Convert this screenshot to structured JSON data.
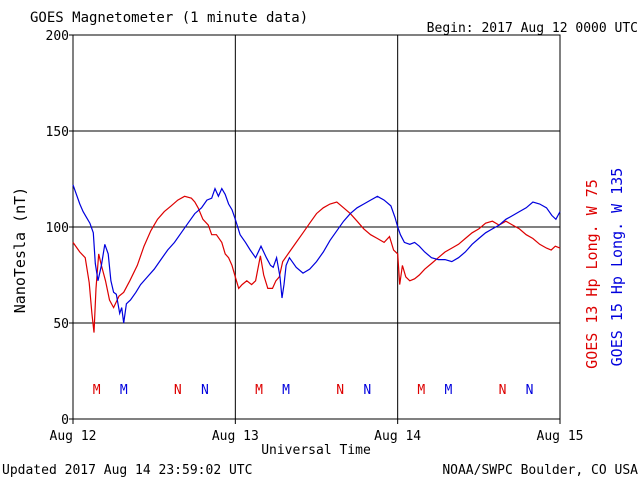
{
  "header": {
    "title": "GOES Magnetometer (1 minute data)",
    "begin": "Begin:  2017 Aug 12 0000 UTC"
  },
  "footer": {
    "updated": "Updated 2017 Aug 14 23:59:02 UTC",
    "credit": "NOAA/SWPC Boulder, CO USA"
  },
  "colors": {
    "goes13": "#dd0000",
    "goes15": "#0000dd",
    "grid": "#000000"
  },
  "chart_data": {
    "type": "line",
    "title": "GOES Magnetometer (1 minute data)",
    "xlabel": "Universal Time",
    "ylabel": "NanoTesla (nT)",
    "ylim": [
      0,
      200
    ],
    "xlim": [
      0,
      72
    ],
    "x_unit": "hours since 2017 Aug 12 0000 UTC",
    "y_ticks": [
      "0",
      "50",
      "100",
      "150",
      "200"
    ],
    "x_ticks": [
      {
        "x": 0,
        "label": "Aug 12"
      },
      {
        "x": 24,
        "label": "Aug 13"
      },
      {
        "x": 48,
        "label": "Aug 14"
      },
      {
        "x": 72,
        "label": "Aug 15"
      }
    ],
    "grid": true,
    "series": [
      {
        "name": "GOES 13 Hp  Long. W 75",
        "color": "#dd0000",
        "points": [
          [
            0,
            92
          ],
          [
            1,
            87
          ],
          [
            1.8,
            84
          ],
          [
            2.4,
            71
          ],
          [
            2.8,
            55
          ],
          [
            3.1,
            45
          ],
          [
            3.4,
            68
          ],
          [
            3.8,
            86
          ],
          [
            4.2,
            80
          ],
          [
            4.8,
            72
          ],
          [
            5.4,
            62
          ],
          [
            6,
            58
          ],
          [
            6.8,
            64
          ],
          [
            7.5,
            66
          ],
          [
            8.4,
            72
          ],
          [
            9.5,
            80
          ],
          [
            10.5,
            90
          ],
          [
            11.5,
            98
          ],
          [
            12.5,
            104
          ],
          [
            13.5,
            108
          ],
          [
            14.5,
            111
          ],
          [
            15.5,
            114
          ],
          [
            16.5,
            116
          ],
          [
            17.5,
            115
          ],
          [
            18,
            113
          ],
          [
            18.5,
            110
          ],
          [
            19.2,
            104
          ],
          [
            20,
            101
          ],
          [
            20.5,
            96
          ],
          [
            21.2,
            96
          ],
          [
            22,
            92
          ],
          [
            22.5,
            86
          ],
          [
            23,
            84
          ],
          [
            23.5,
            80
          ],
          [
            24,
            74
          ],
          [
            24.5,
            68
          ],
          [
            25,
            70
          ],
          [
            25.7,
            72
          ],
          [
            26.4,
            70
          ],
          [
            27,
            72
          ],
          [
            27.7,
            85
          ],
          [
            28.2,
            75
          ],
          [
            28.8,
            68
          ],
          [
            29.5,
            68
          ],
          [
            30,
            72
          ],
          [
            30.5,
            74
          ],
          [
            31,
            82
          ],
          [
            32,
            87
          ],
          [
            33,
            92
          ],
          [
            34,
            97
          ],
          [
            35,
            102
          ],
          [
            36,
            107
          ],
          [
            37,
            110
          ],
          [
            38,
            112
          ],
          [
            39,
            113
          ],
          [
            40,
            110
          ],
          [
            41,
            107
          ],
          [
            42,
            103
          ],
          [
            43,
            99
          ],
          [
            44,
            96
          ],
          [
            45,
            94
          ],
          [
            46,
            92
          ],
          [
            46.8,
            95
          ],
          [
            47.4,
            88
          ],
          [
            48,
            86
          ],
          [
            48.3,
            70
          ],
          [
            48.7,
            80
          ],
          [
            49.2,
            74
          ],
          [
            49.8,
            72
          ],
          [
            50.5,
            73
          ],
          [
            51.2,
            75
          ],
          [
            52,
            78
          ],
          [
            53,
            81
          ],
          [
            54,
            84
          ],
          [
            55,
            87
          ],
          [
            56,
            89
          ],
          [
            57,
            91
          ],
          [
            58,
            94
          ],
          [
            59,
            97
          ],
          [
            60,
            99
          ],
          [
            61,
            102
          ],
          [
            62,
            103
          ],
          [
            63,
            101
          ],
          [
            64,
            103
          ],
          [
            65,
            101
          ],
          [
            66,
            99
          ],
          [
            67,
            96
          ],
          [
            68,
            94
          ],
          [
            69,
            91
          ],
          [
            70,
            89
          ],
          [
            70.7,
            88
          ],
          [
            71.3,
            90
          ],
          [
            72,
            89
          ]
        ]
      },
      {
        "name": "GOES 15 Hp  Long. W 135",
        "color": "#0000dd",
        "points": [
          [
            0,
            122
          ],
          [
            0.4,
            118
          ],
          [
            1,
            112
          ],
          [
            1.5,
            108
          ],
          [
            2,
            105
          ],
          [
            2.5,
            102
          ],
          [
            3,
            97
          ],
          [
            3.3,
            81
          ],
          [
            3.7,
            72
          ],
          [
            4.2,
            80
          ],
          [
            4.7,
            91
          ],
          [
            5.2,
            86
          ],
          [
            5.6,
            72
          ],
          [
            6,
            66
          ],
          [
            6.4,
            65
          ],
          [
            6.9,
            55
          ],
          [
            7.2,
            58
          ],
          [
            7.5,
            50
          ],
          [
            7.9,
            60
          ],
          [
            8.5,
            62
          ],
          [
            9.3,
            66
          ],
          [
            10,
            70
          ],
          [
            11,
            74
          ],
          [
            12,
            78
          ],
          [
            13,
            83
          ],
          [
            14,
            88
          ],
          [
            15,
            92
          ],
          [
            16,
            97
          ],
          [
            17,
            102
          ],
          [
            18,
            107
          ],
          [
            19,
            110
          ],
          [
            19.8,
            114
          ],
          [
            20.5,
            115
          ],
          [
            21,
            120
          ],
          [
            21.5,
            116
          ],
          [
            22,
            120
          ],
          [
            22.5,
            117
          ],
          [
            23,
            112
          ],
          [
            23.5,
            109
          ],
          [
            24,
            104
          ],
          [
            24.7,
            96
          ],
          [
            25.5,
            92
          ],
          [
            26.2,
            88
          ],
          [
            27,
            84
          ],
          [
            27.8,
            90
          ],
          [
            28.6,
            84
          ],
          [
            29.2,
            80
          ],
          [
            29.6,
            79
          ],
          [
            30.1,
            84
          ],
          [
            30.6,
            74
          ],
          [
            30.9,
            63
          ],
          [
            31.2,
            70
          ],
          [
            31.5,
            80
          ],
          [
            32,
            84
          ],
          [
            33,
            79
          ],
          [
            34,
            76
          ],
          [
            35,
            78
          ],
          [
            36,
            82
          ],
          [
            37,
            87
          ],
          [
            38,
            93
          ],
          [
            39,
            98
          ],
          [
            40,
            103
          ],
          [
            41,
            107
          ],
          [
            42,
            110
          ],
          [
            43,
            112
          ],
          [
            44,
            114
          ],
          [
            45,
            116
          ],
          [
            46,
            114
          ],
          [
            47,
            111
          ],
          [
            47.6,
            105
          ],
          [
            48,
            100
          ],
          [
            48.4,
            96
          ],
          [
            49,
            92
          ],
          [
            49.8,
            91
          ],
          [
            50.5,
            92
          ],
          [
            51.2,
            90
          ],
          [
            52,
            87
          ],
          [
            53,
            84
          ],
          [
            54,
            83
          ],
          [
            55,
            83
          ],
          [
            56,
            82
          ],
          [
            57,
            84
          ],
          [
            58,
            87
          ],
          [
            59,
            91
          ],
          [
            60,
            94
          ],
          [
            61,
            97
          ],
          [
            62,
            99
          ],
          [
            63,
            101
          ],
          [
            64,
            104
          ],
          [
            65,
            106
          ],
          [
            66,
            108
          ],
          [
            67,
            110
          ],
          [
            68,
            113
          ],
          [
            69,
            112
          ],
          [
            70,
            110
          ],
          [
            70.8,
            106
          ],
          [
            71.4,
            104
          ],
          [
            72,
            108
          ]
        ]
      }
    ],
    "markers": [
      {
        "x": 3.5,
        "label": "M",
        "color": "#dd0000"
      },
      {
        "x": 7.5,
        "label": "M",
        "color": "#0000dd"
      },
      {
        "x": 15.5,
        "label": "N",
        "color": "#dd0000"
      },
      {
        "x": 19.5,
        "label": "N",
        "color": "#0000dd"
      },
      {
        "x": 27.5,
        "label": "M",
        "color": "#dd0000"
      },
      {
        "x": 31.5,
        "label": "M",
        "color": "#0000dd"
      },
      {
        "x": 39.5,
        "label": "N",
        "color": "#dd0000"
      },
      {
        "x": 43.5,
        "label": "N",
        "color": "#0000dd"
      },
      {
        "x": 51.5,
        "label": "M",
        "color": "#dd0000"
      },
      {
        "x": 55.5,
        "label": "M",
        "color": "#0000dd"
      },
      {
        "x": 63.5,
        "label": "N",
        "color": "#dd0000"
      },
      {
        "x": 67.5,
        "label": "N",
        "color": "#0000dd"
      }
    ],
    "legend_placement": "right-vertical"
  }
}
